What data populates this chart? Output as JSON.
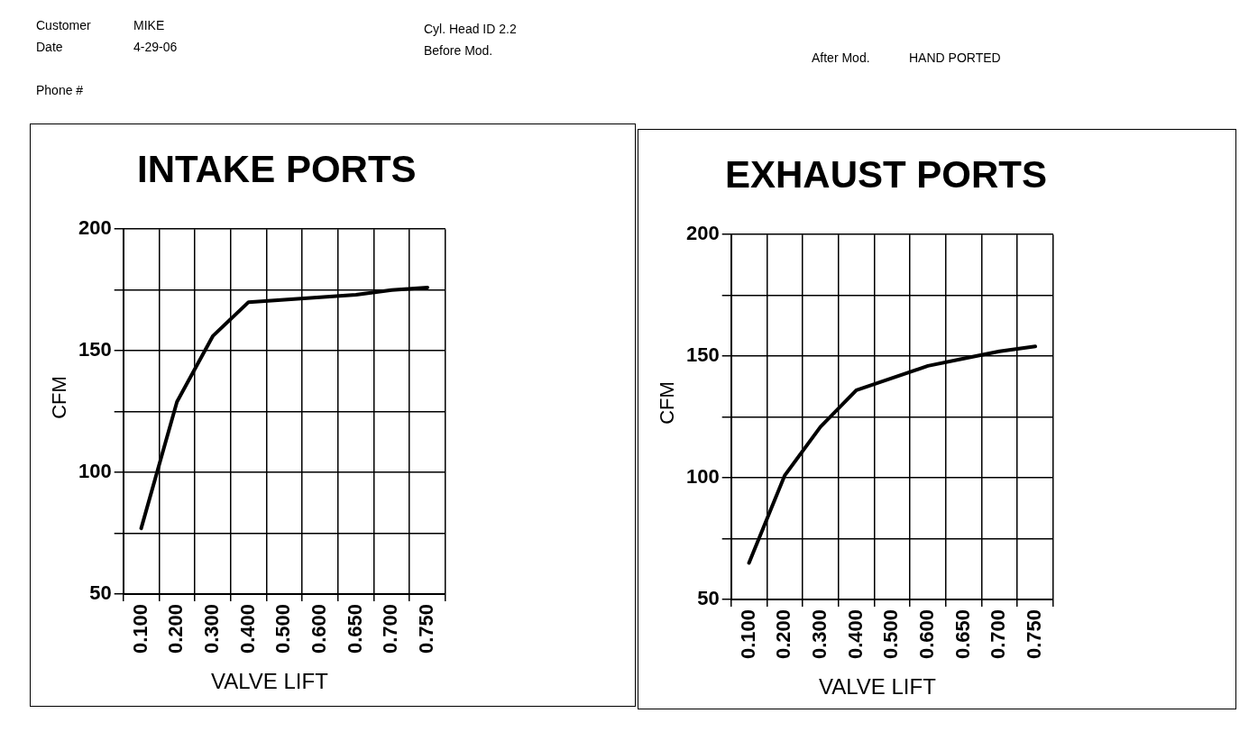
{
  "chart_data": [
    {
      "type": "line",
      "title": "INTAKE PORTS",
      "xlabel": "VALVE LIFT",
      "ylabel": "CFM",
      "categories": [
        "0.100",
        "0.200",
        "0.300",
        "0.400",
        "0.500",
        "0.600",
        "0.650",
        "0.700",
        "0.750"
      ],
      "series": [
        {
          "color": "#000000",
          "values": [
            77,
            129,
            156,
            170,
            171,
            172,
            173,
            175,
            176
          ]
        }
      ],
      "ylim": [
        50,
        200
      ],
      "yticks": [
        50,
        {
          "value": 75,
          "label": null
        },
        100,
        {
          "value": 125,
          "label": null
        },
        150,
        {
          "value": 175,
          "label": null
        },
        200
      ],
      "grid": true,
      "legend": false,
      "marker": "none",
      "line_style": "solid",
      "annotations": [
        "Customer",
        "MIKE",
        "Date",
        "4-29-06",
        "Phone #",
        "Cyl. Head ID 2.2",
        "Before Mod.",
        "After Mod.",
        "HAND PORTED"
      ]
    },
    {
      "type": "line",
      "title": "EXHAUST PORTS",
      "xlabel": "VALVE LIFT",
      "ylabel": "CFM",
      "categories": [
        "0.100",
        "0.200",
        "0.300",
        "0.400",
        "0.500",
        "0.600",
        "0.650",
        "0.700",
        "0.750"
      ],
      "series": [
        {
          "color": "#000000",
          "values": [
            65,
            101,
            121,
            136,
            141,
            146,
            149,
            152,
            154
          ]
        }
      ],
      "ylim": [
        50,
        200
      ],
      "yticks": [
        50,
        {
          "value": 75,
          "label": null
        },
        100,
        {
          "value": 125,
          "label": null
        },
        150,
        {
          "value": 175,
          "label": null
        },
        200
      ],
      "grid": true,
      "legend": false,
      "marker": "none",
      "line_style": "solid"
    }
  ]
}
